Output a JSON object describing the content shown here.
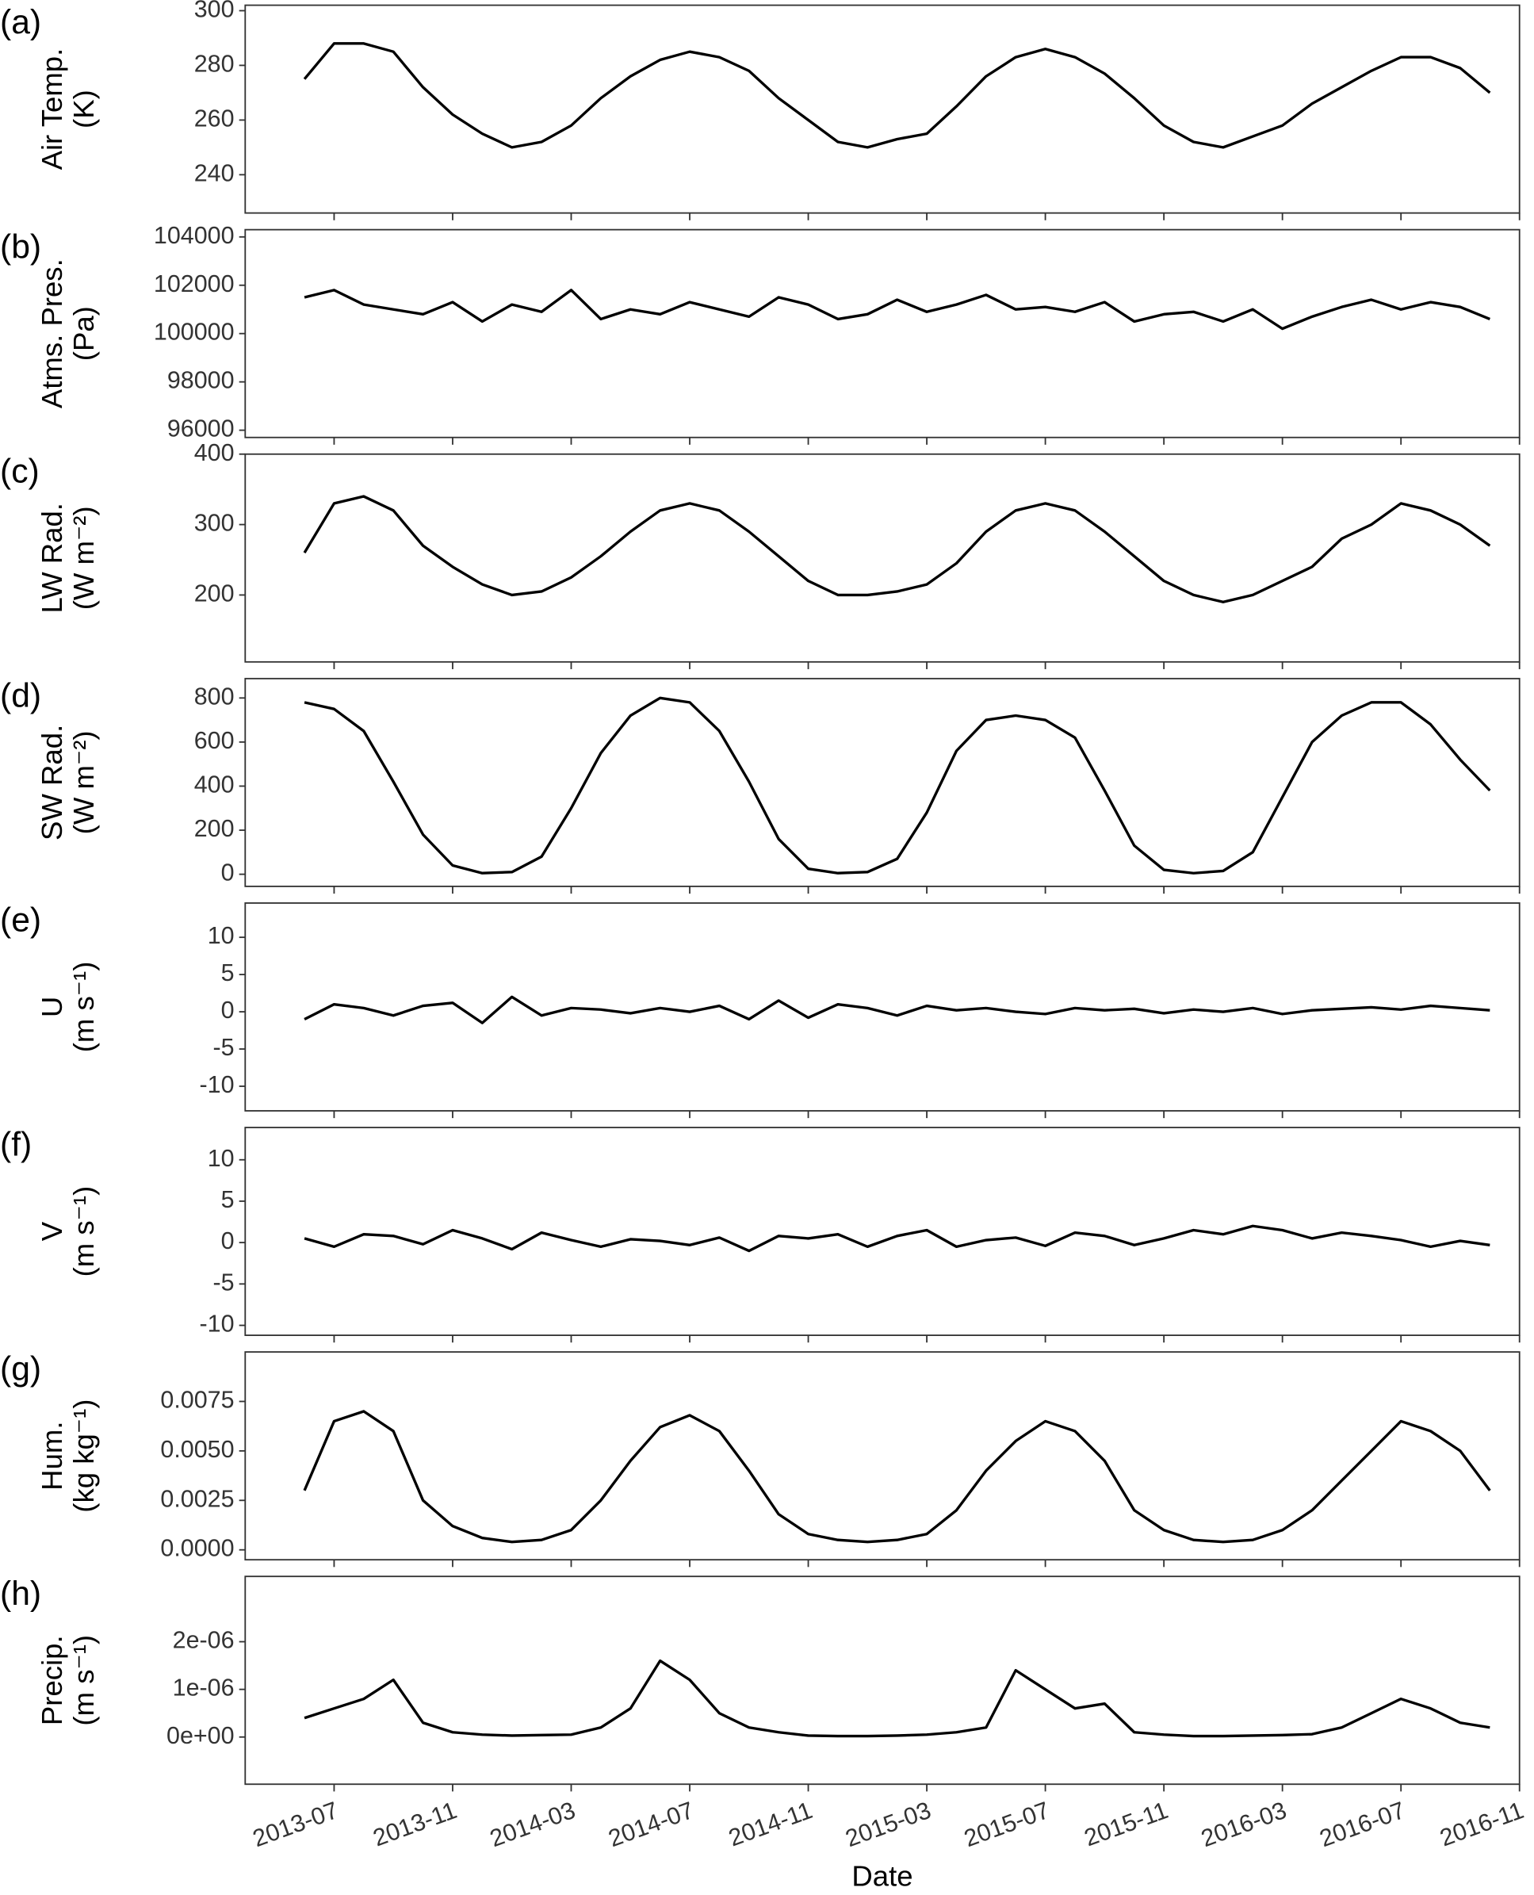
{
  "chart_data": [
    {
      "type": "line",
      "tag": "(a)",
      "ylabel": [
        "Air Temp.",
        "(K)"
      ],
      "color": "#000000",
      "x": [
        "2013-06",
        "2013-07",
        "2013-08",
        "2013-09",
        "2013-10",
        "2013-11",
        "2013-12",
        "2014-01",
        "2014-02",
        "2014-03",
        "2014-04",
        "2014-05",
        "2014-06",
        "2014-07",
        "2014-08",
        "2014-09",
        "2014-10",
        "2014-11",
        "2014-12",
        "2015-01",
        "2015-02",
        "2015-03",
        "2015-04",
        "2015-05",
        "2015-06",
        "2015-07",
        "2015-08",
        "2015-09",
        "2015-10",
        "2015-11",
        "2015-12",
        "2016-01",
        "2016-02",
        "2016-03",
        "2016-04",
        "2016-05",
        "2016-06",
        "2016-07",
        "2016-08",
        "2016-09",
        "2016-10"
      ],
      "values": [
        275,
        288,
        288,
        285,
        272,
        262,
        255,
        250,
        252,
        258,
        268,
        276,
        282,
        285,
        283,
        278,
        268,
        260,
        252,
        250,
        253,
        255,
        265,
        276,
        283,
        286,
        283,
        277,
        268,
        258,
        252,
        250,
        254,
        258,
        266,
        272,
        278,
        283,
        283,
        279,
        270
      ],
      "xlim": [
        "2013-04",
        "2016-11"
      ],
      "xticks": [
        "2013-07",
        "2013-11",
        "2014-03",
        "2014-07",
        "2014-11",
        "2015-03",
        "2015-07",
        "2015-11",
        "2016-03",
        "2016-07",
        "2016-11"
      ],
      "ylim": [
        226,
        302
      ],
      "yticks": [
        240,
        260,
        280,
        300
      ]
    },
    {
      "type": "line",
      "tag": "(b)",
      "ylabel": [
        "Atms. Pres.",
        "(Pa)"
      ],
      "color": "#000000",
      "x": [
        "2013-06",
        "2013-07",
        "2013-08",
        "2013-09",
        "2013-10",
        "2013-11",
        "2013-12",
        "2014-01",
        "2014-02",
        "2014-03",
        "2014-04",
        "2014-05",
        "2014-06",
        "2014-07",
        "2014-08",
        "2014-09",
        "2014-10",
        "2014-11",
        "2014-12",
        "2015-01",
        "2015-02",
        "2015-03",
        "2015-04",
        "2015-05",
        "2015-06",
        "2015-07",
        "2015-08",
        "2015-09",
        "2015-10",
        "2015-11",
        "2015-12",
        "2016-01",
        "2016-02",
        "2016-03",
        "2016-04",
        "2016-05",
        "2016-06",
        "2016-07",
        "2016-08",
        "2016-09",
        "2016-10"
      ],
      "values": [
        101500,
        101800,
        101200,
        101000,
        100800,
        101300,
        100500,
        101200,
        100900,
        101800,
        100600,
        101000,
        100800,
        101300,
        101000,
        100700,
        101500,
        101200,
        100600,
        100800,
        101400,
        100900,
        101200,
        101600,
        101000,
        101100,
        100900,
        101300,
        100500,
        100800,
        100900,
        100500,
        101000,
        100200,
        100700,
        101100,
        101400,
        101000,
        101300,
        101100,
        100600
      ],
      "xlim": [
        "2013-04",
        "2016-11"
      ],
      "xticks": [
        "2013-07",
        "2013-11",
        "2014-03",
        "2014-07",
        "2014-11",
        "2015-03",
        "2015-07",
        "2015-11",
        "2016-03",
        "2016-07",
        "2016-11"
      ],
      "ylim": [
        95700,
        104300
      ],
      "yticks": [
        96000,
        98000,
        100000,
        102000,
        104000
      ]
    },
    {
      "type": "line",
      "tag": "(c)",
      "ylabel": [
        "LW Rad.",
        "(W m⁻²)"
      ],
      "color": "#000000",
      "x": [
        "2013-06",
        "2013-07",
        "2013-08",
        "2013-09",
        "2013-10",
        "2013-11",
        "2013-12",
        "2014-01",
        "2014-02",
        "2014-03",
        "2014-04",
        "2014-05",
        "2014-06",
        "2014-07",
        "2014-08",
        "2014-09",
        "2014-10",
        "2014-11",
        "2014-12",
        "2015-01",
        "2015-02",
        "2015-03",
        "2015-04",
        "2015-05",
        "2015-06",
        "2015-07",
        "2015-08",
        "2015-09",
        "2015-10",
        "2015-11",
        "2015-12",
        "2016-01",
        "2016-02",
        "2016-03",
        "2016-04",
        "2016-05",
        "2016-06",
        "2016-07",
        "2016-08",
        "2016-09",
        "2016-10"
      ],
      "values": [
        260,
        330,
        340,
        320,
        270,
        240,
        215,
        200,
        205,
        225,
        255,
        290,
        320,
        330,
        320,
        290,
        255,
        220,
        200,
        200,
        205,
        215,
        245,
        290,
        320,
        330,
        320,
        290,
        255,
        220,
        200,
        190,
        200,
        220,
        240,
        280,
        300,
        330,
        320,
        300,
        270
      ],
      "xlim": [
        "2013-04",
        "2016-11"
      ],
      "xticks": [
        "2013-07",
        "2013-11",
        "2014-03",
        "2014-07",
        "2014-11",
        "2015-03",
        "2015-07",
        "2015-11",
        "2016-03",
        "2016-07",
        "2016-11"
      ],
      "ylim": [
        105,
        400
      ],
      "yticks": [
        200,
        300,
        400
      ]
    },
    {
      "type": "line",
      "tag": "(d)",
      "ylabel": [
        "SW Rad.",
        "(W m⁻²)"
      ],
      "color": "#000000",
      "x": [
        "2013-06",
        "2013-07",
        "2013-08",
        "2013-09",
        "2013-10",
        "2013-11",
        "2013-12",
        "2014-01",
        "2014-02",
        "2014-03",
        "2014-04",
        "2014-05",
        "2014-06",
        "2014-07",
        "2014-08",
        "2014-09",
        "2014-10",
        "2014-11",
        "2014-12",
        "2015-01",
        "2015-02",
        "2015-03",
        "2015-04",
        "2015-05",
        "2015-06",
        "2015-07",
        "2015-08",
        "2015-09",
        "2015-10",
        "2015-11",
        "2015-12",
        "2016-01",
        "2016-02",
        "2016-03",
        "2016-04",
        "2016-05",
        "2016-06",
        "2016-07",
        "2016-08",
        "2016-09",
        "2016-10"
      ],
      "values": [
        780,
        750,
        650,
        420,
        180,
        40,
        5,
        10,
        80,
        300,
        550,
        720,
        800,
        780,
        650,
        420,
        160,
        25,
        5,
        10,
        70,
        280,
        560,
        700,
        720,
        700,
        620,
        380,
        130,
        20,
        5,
        15,
        100,
        350,
        600,
        720,
        780,
        780,
        680,
        520,
        380
      ],
      "xlim": [
        "2013-04",
        "2016-11"
      ],
      "xticks": [
        "2013-07",
        "2013-11",
        "2014-03",
        "2014-07",
        "2014-11",
        "2015-03",
        "2015-07",
        "2015-11",
        "2016-03",
        "2016-07",
        "2016-11"
      ],
      "ylim": [
        -55,
        888
      ],
      "yticks": [
        0,
        200,
        400,
        600,
        800
      ]
    },
    {
      "type": "line",
      "tag": "(e)",
      "ylabel": [
        "U",
        "(m s⁻¹)"
      ],
      "color": "#000000",
      "x": [
        "2013-06",
        "2013-07",
        "2013-08",
        "2013-09",
        "2013-10",
        "2013-11",
        "2013-12",
        "2014-01",
        "2014-02",
        "2014-03",
        "2014-04",
        "2014-05",
        "2014-06",
        "2014-07",
        "2014-08",
        "2014-09",
        "2014-10",
        "2014-11",
        "2014-12",
        "2015-01",
        "2015-02",
        "2015-03",
        "2015-04",
        "2015-05",
        "2015-06",
        "2015-07",
        "2015-08",
        "2015-09",
        "2015-10",
        "2015-11",
        "2015-12",
        "2016-01",
        "2016-02",
        "2016-03",
        "2016-04",
        "2016-05",
        "2016-06",
        "2016-07",
        "2016-08",
        "2016-09",
        "2016-10"
      ],
      "values": [
        -1,
        1,
        0.5,
        -0.5,
        0.8,
        1.2,
        -1.5,
        2,
        -0.5,
        0.5,
        0.3,
        -0.2,
        0.5,
        0,
        0.8,
        -1,
        1.5,
        -0.8,
        1,
        0.5,
        -0.5,
        0.8,
        0.2,
        0.5,
        0,
        -0.3,
        0.5,
        0.2,
        0.4,
        -0.2,
        0.3,
        0,
        0.5,
        -0.3,
        0.2,
        0.4,
        0.6,
        0.3,
        0.8,
        0.5,
        0.2
      ],
      "xlim": [
        "2013-04",
        "2016-11"
      ],
      "xticks": [
        "2013-07",
        "2013-11",
        "2014-03",
        "2014-07",
        "2014-11",
        "2015-03",
        "2015-07",
        "2015-11",
        "2016-03",
        "2016-07",
        "2016-11"
      ],
      "ylim": [
        -13.3,
        14.6
      ],
      "yticks": [
        -10,
        -5,
        0,
        5,
        10
      ]
    },
    {
      "type": "line",
      "tag": "(f)",
      "ylabel": [
        "V",
        "(m s⁻¹)"
      ],
      "color": "#000000",
      "x": [
        "2013-06",
        "2013-07",
        "2013-08",
        "2013-09",
        "2013-10",
        "2013-11",
        "2013-12",
        "2014-01",
        "2014-02",
        "2014-03",
        "2014-04",
        "2014-05",
        "2014-06",
        "2014-07",
        "2014-08",
        "2014-09",
        "2014-10",
        "2014-11",
        "2014-12",
        "2015-01",
        "2015-02",
        "2015-03",
        "2015-04",
        "2015-05",
        "2015-06",
        "2015-07",
        "2015-08",
        "2015-09",
        "2015-10",
        "2015-11",
        "2015-12",
        "2016-01",
        "2016-02",
        "2016-03",
        "2016-04",
        "2016-05",
        "2016-06",
        "2016-07",
        "2016-08",
        "2016-09",
        "2016-10"
      ],
      "values": [
        0.5,
        -0.5,
        1,
        0.8,
        -0.2,
        1.5,
        0.5,
        -0.8,
        1.2,
        0.3,
        -0.5,
        0.4,
        0.2,
        -0.3,
        0.6,
        -1,
        0.8,
        0.5,
        1,
        -0.5,
        0.8,
        1.5,
        -0.5,
        0.3,
        0.6,
        -0.4,
        1.2,
        0.8,
        -0.3,
        0.5,
        1.5,
        1,
        2,
        1.5,
        0.5,
        1.2,
        0.8,
        0.3,
        -0.5,
        0.2,
        -0.3
      ],
      "xlim": [
        "2013-04",
        "2016-11"
      ],
      "xticks": [
        "2013-07",
        "2013-11",
        "2014-03",
        "2014-07",
        "2014-11",
        "2015-03",
        "2015-07",
        "2015-11",
        "2016-03",
        "2016-07",
        "2016-11"
      ],
      "ylim": [
        -11.2,
        13.9
      ],
      "yticks": [
        -10,
        -5,
        0,
        5,
        10
      ]
    },
    {
      "type": "line",
      "tag": "(g)",
      "ylabel": [
        "Hum.",
        "(kg kg⁻¹)"
      ],
      "color": "#000000",
      "x": [
        "2013-06",
        "2013-07",
        "2013-08",
        "2013-09",
        "2013-10",
        "2013-11",
        "2013-12",
        "2014-01",
        "2014-02",
        "2014-03",
        "2014-04",
        "2014-05",
        "2014-06",
        "2014-07",
        "2014-08",
        "2014-09",
        "2014-10",
        "2014-11",
        "2014-12",
        "2015-01",
        "2015-02",
        "2015-03",
        "2015-04",
        "2015-05",
        "2015-06",
        "2015-07",
        "2015-08",
        "2015-09",
        "2015-10",
        "2015-11",
        "2015-12",
        "2016-01",
        "2016-02",
        "2016-03",
        "2016-04",
        "2016-05",
        "2016-06",
        "2016-07",
        "2016-08",
        "2016-09",
        "2016-10"
      ],
      "values": [
        0.003,
        0.0065,
        0.007,
        0.006,
        0.0025,
        0.0012,
        0.0006,
        0.0004,
        0.0005,
        0.001,
        0.0025,
        0.0045,
        0.0062,
        0.0068,
        0.006,
        0.004,
        0.0018,
        0.0008,
        0.0005,
        0.0004,
        0.0005,
        0.0008,
        0.002,
        0.004,
        0.0055,
        0.0065,
        0.006,
        0.0045,
        0.002,
        0.001,
        0.0005,
        0.0004,
        0.0005,
        0.001,
        0.002,
        0.0035,
        0.005,
        0.0065,
        0.006,
        0.005,
        0.003
      ],
      "xlim": [
        "2013-04",
        "2016-11"
      ],
      "xticks": [
        "2013-07",
        "2013-11",
        "2014-03",
        "2014-07",
        "2014-11",
        "2015-03",
        "2015-07",
        "2015-11",
        "2016-03",
        "2016-07",
        "2016-11"
      ],
      "ylim": [
        -0.0005,
        0.01
      ],
      "yticks": [
        {
          "value": 0,
          "label": "0.0000"
        },
        {
          "value": 0.0025,
          "label": "0.0025"
        },
        {
          "value": 0.005,
          "label": "0.0050"
        },
        {
          "value": 0.0075,
          "label": "0.0075"
        }
      ]
    },
    {
      "type": "line",
      "tag": "(h)",
      "ylabel": [
        "Precip.",
        "(m s⁻¹)"
      ],
      "color": "#000000",
      "xlabel": "Date",
      "x": [
        "2013-06",
        "2013-07",
        "2013-08",
        "2013-09",
        "2013-10",
        "2013-11",
        "2013-12",
        "2014-01",
        "2014-02",
        "2014-03",
        "2014-04",
        "2014-05",
        "2014-06",
        "2014-07",
        "2014-08",
        "2014-09",
        "2014-10",
        "2014-11",
        "2014-12",
        "2015-01",
        "2015-02",
        "2015-03",
        "2015-04",
        "2015-05",
        "2015-06",
        "2015-07",
        "2015-08",
        "2015-09",
        "2015-10",
        "2015-11",
        "2015-12",
        "2016-01",
        "2016-02",
        "2016-03",
        "2016-04",
        "2016-05",
        "2016-06",
        "2016-07",
        "2016-08",
        "2016-09",
        "2016-10"
      ],
      "values": [
        4e-07,
        6e-07,
        8e-07,
        1.2e-06,
        3e-07,
        1e-07,
        5e-08,
        3e-08,
        4e-08,
        5e-08,
        2e-07,
        6e-07,
        1.6e-06,
        1.2e-06,
        5e-07,
        2e-07,
        1e-07,
        3e-08,
        2e-08,
        2e-08,
        3e-08,
        5e-08,
        1e-07,
        2e-07,
        1.4e-06,
        1e-06,
        6e-07,
        7e-07,
        1e-07,
        5e-08,
        2e-08,
        2e-08,
        3e-08,
        4e-08,
        6e-08,
        2e-07,
        5e-07,
        8e-07,
        6e-07,
        3e-07,
        2e-07
      ],
      "xlim": [
        "2013-04",
        "2016-11"
      ],
      "xticks": [
        "2013-07",
        "2013-11",
        "2014-03",
        "2014-07",
        "2014-11",
        "2015-03",
        "2015-07",
        "2015-11",
        "2016-03",
        "2016-07",
        "2016-11"
      ],
      "ylim": [
        -9.9e-07,
        3.37e-06
      ],
      "yticks": [
        {
          "value": 0,
          "label": "0e+00"
        },
        {
          "value": 1e-06,
          "label": "1e-06"
        },
        {
          "value": 2e-06,
          "label": "2e-06"
        }
      ]
    }
  ]
}
